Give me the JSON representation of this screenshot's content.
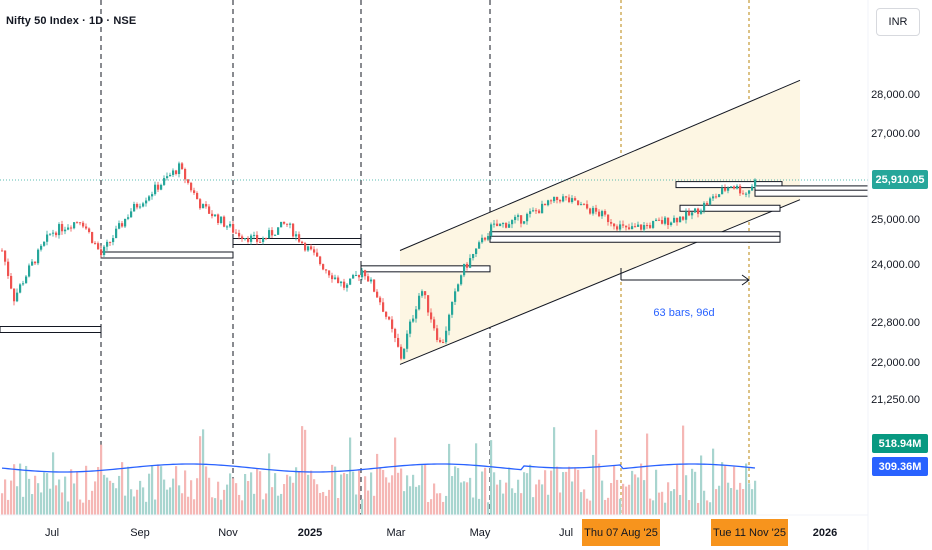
{
  "header": {
    "symbol_label": "Nifty 50 Index · 1D · NSE",
    "currency_button": "INR"
  },
  "price_axis": {
    "labels": [
      "28,000.00",
      "27,000.00",
      "25,000.00",
      "24,000.00",
      "22,800.00",
      "22,000.00",
      "21,250.00"
    ],
    "last_price": "25,910.05",
    "volume_value": "518.94M",
    "volume_ma_value": "309.36M"
  },
  "time_axis": {
    "labels": [
      "Jul",
      "Sep",
      "Nov",
      "2025",
      "Mar",
      "May",
      "Jul",
      "2026"
    ],
    "start_marker": "Thu 07 Aug '25",
    "end_marker": "Tue 11 Nov '25"
  },
  "measure": {
    "label": "63 bars, 96d"
  },
  "colors": {
    "up": "#26a69a",
    "down": "#ef5350",
    "volume_ma": "#2962ff",
    "channel_fill": "#fdf6e3",
    "last_price_tag": "#26a69a",
    "volume_tag": "#089981",
    "volume_ma_tag": "#2962ff",
    "date_tag": "#f7941d",
    "measure_text": "#2962ff"
  },
  "chart_data": {
    "type": "candlestick",
    "symbol": "Nifty 50 Index",
    "timeframe": "1D",
    "exchange": "NSE",
    "last_price": 25910.05,
    "close_path": [
      [
        1,
        24300
      ],
      [
        13,
        23300
      ],
      [
        23,
        23700
      ],
      [
        50,
        24700
      ],
      [
        80,
        25000
      ],
      [
        100,
        24200
      ],
      [
        130,
        25200
      ],
      [
        178,
        26200
      ],
      [
        200,
        25300
      ],
      [
        235,
        24700
      ],
      [
        258,
        24500
      ],
      [
        285,
        24900
      ],
      [
        320,
        24000
      ],
      [
        345,
        23500
      ],
      [
        362,
        23900
      ],
      [
        380,
        23200
      ],
      [
        400,
        22100
      ],
      [
        420,
        23500
      ],
      [
        440,
        22300
      ],
      [
        460,
        23800
      ],
      [
        490,
        24800
      ],
      [
        520,
        25000
      ],
      [
        560,
        25500
      ],
      [
        600,
        25100
      ],
      [
        625,
        24750
      ],
      [
        655,
        24900
      ],
      [
        690,
        25100
      ],
      [
        730,
        25800
      ],
      [
        745,
        25600
      ],
      [
        755,
        25910
      ]
    ],
    "volume": {
      "last": "518.94M",
      "moving_average": "309.36M"
    },
    "channel": {
      "lower": [
        [
          400,
          21950
        ],
        [
          800,
          25450
        ]
      ],
      "upper": [
        [
          400,
          24300
        ],
        [
          800,
          28350
        ]
      ]
    },
    "horizontal_levels": [
      22650,
      23900,
      24200,
      24500,
      24550,
      24650,
      25250,
      25600,
      25700,
      25800
    ],
    "measurement": {
      "from": "Thu 07 Aug '25",
      "to": "Tue 11 Nov '25",
      "bars": 63,
      "days": 96
    },
    "y_ticks": [
      28000,
      27000,
      25000,
      24000,
      22800,
      22000,
      21250
    ],
    "x_ticks": [
      "Jul",
      "Sep",
      "Nov",
      "2025",
      "Mar",
      "May",
      "Jul",
      "2026"
    ]
  }
}
